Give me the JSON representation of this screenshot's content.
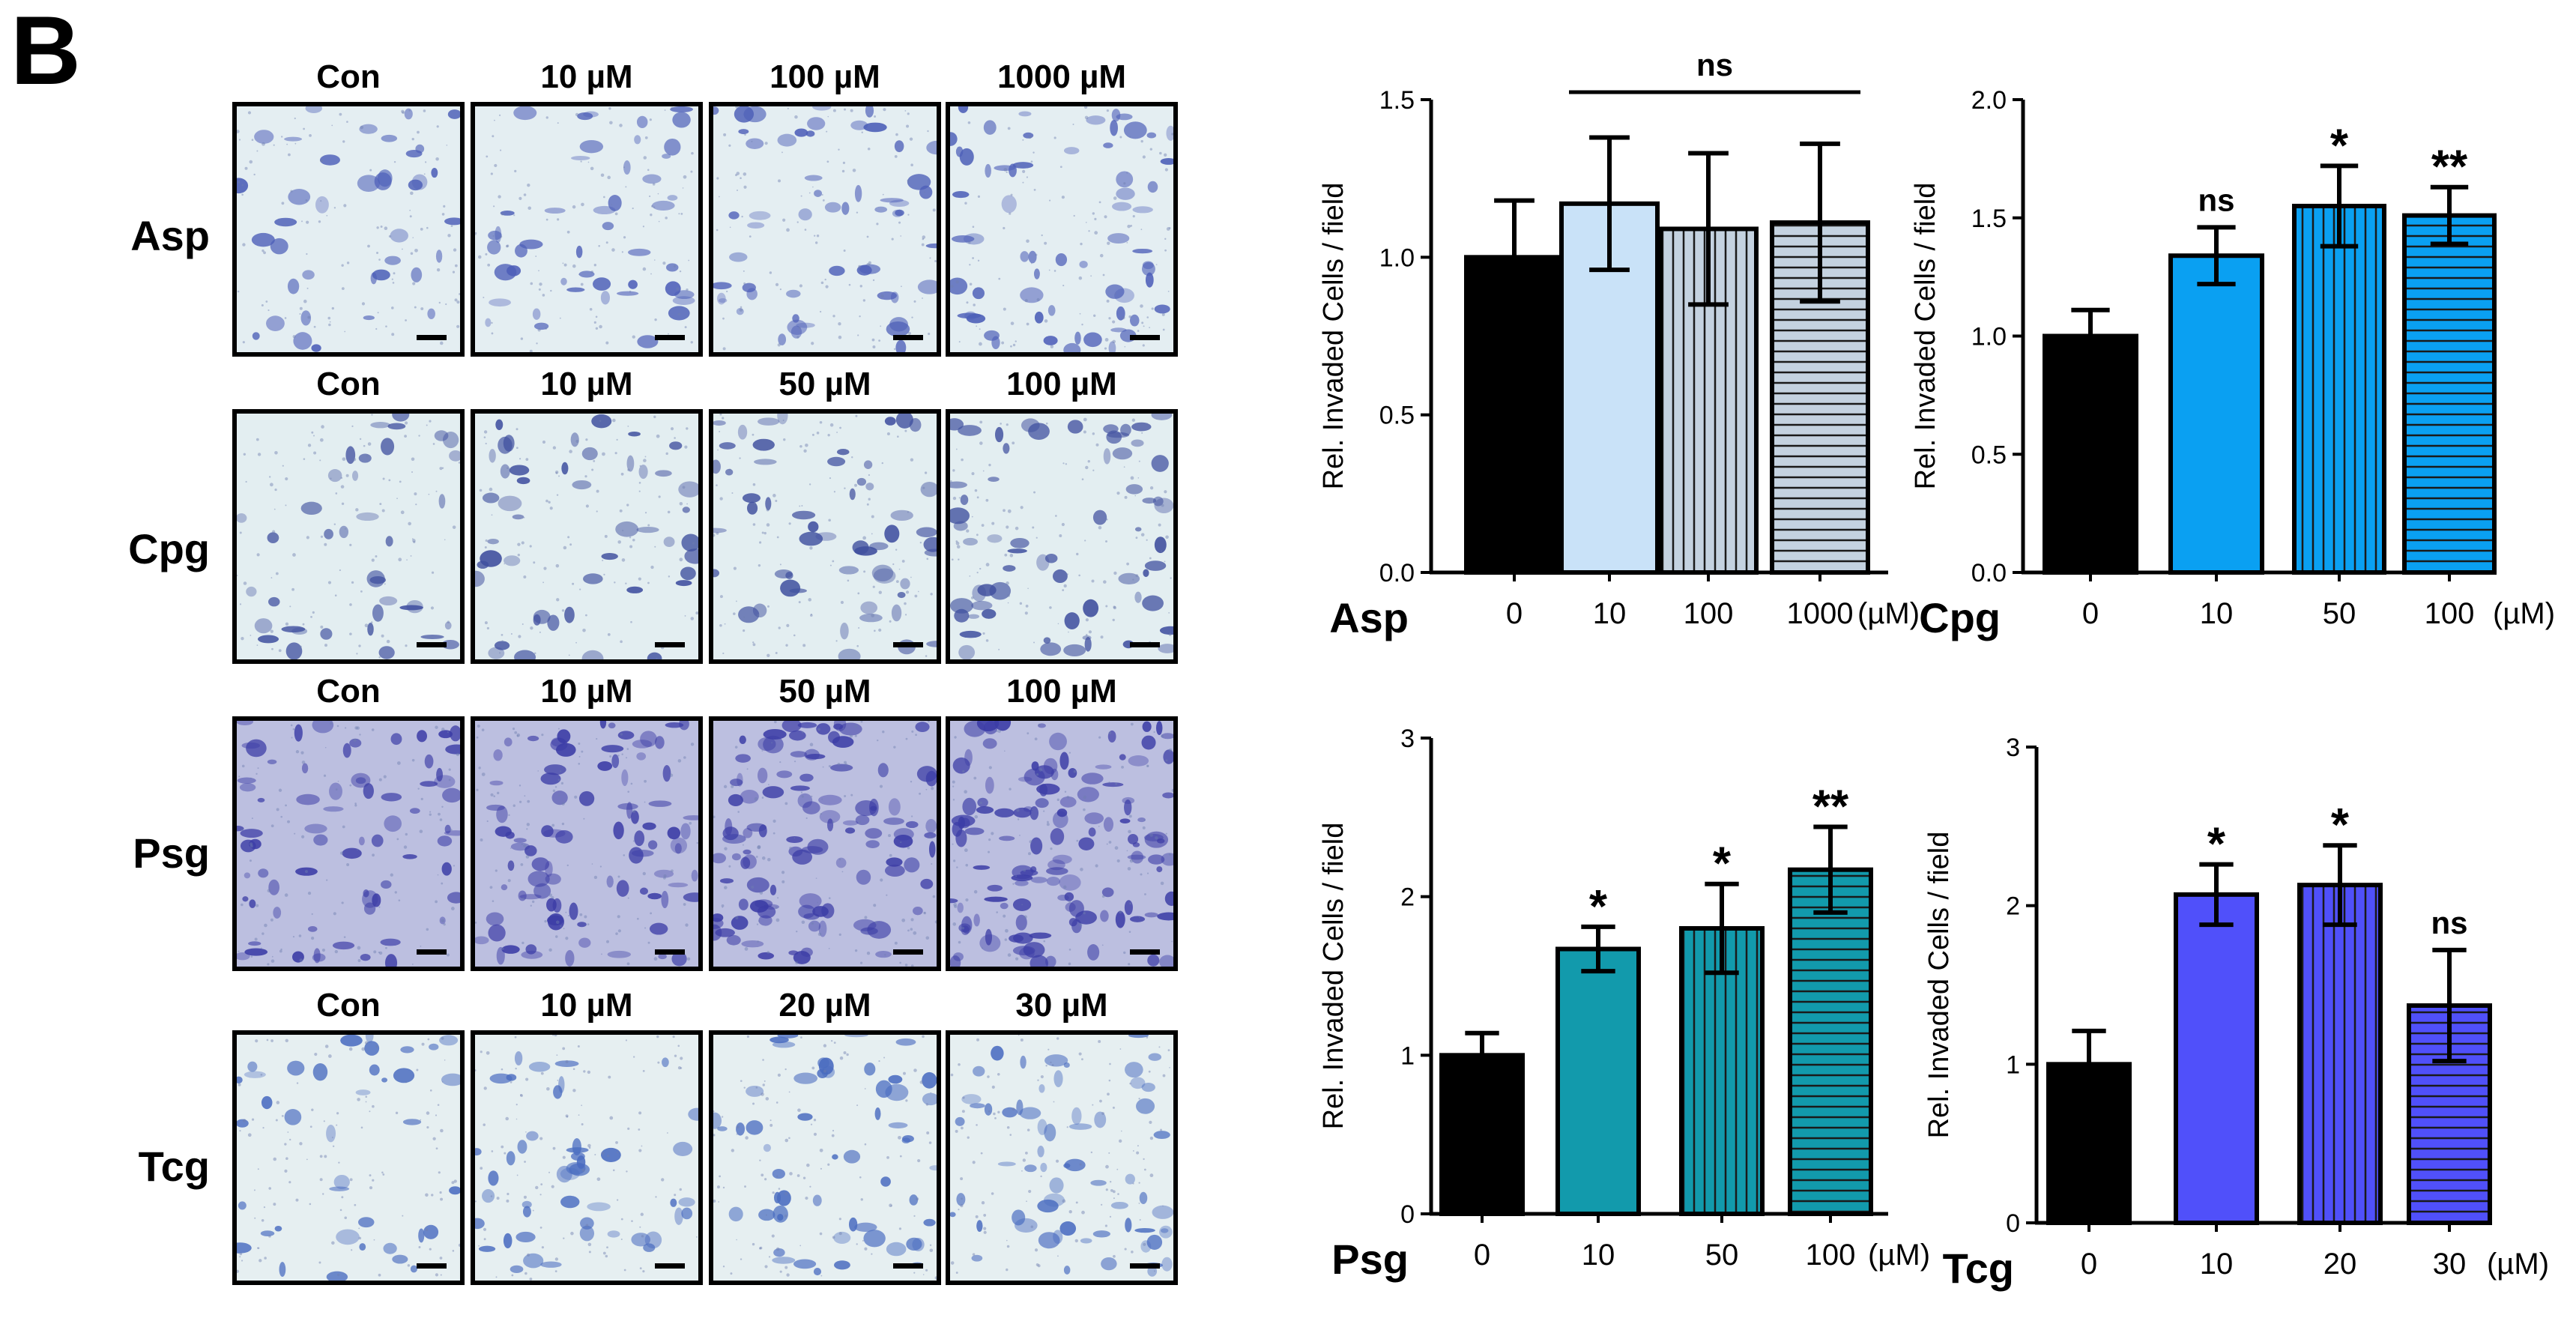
{
  "panel_label": "B",
  "micrograph_grid": {
    "rows": [
      {
        "label": "Asp",
        "conditions": [
          "Con",
          "10 µM",
          "100 µM",
          "1000 µM"
        ]
      },
      {
        "label": "Cpg",
        "conditions": [
          "Con",
          "10 µM",
          "50 µM",
          "100 µM"
        ]
      },
      {
        "label": "Psg",
        "conditions": [
          "Con",
          "10 µM",
          "50 µM",
          "100 µM"
        ]
      },
      {
        "label": "Tcg",
        "conditions": [
          "Con",
          "10 µM",
          "20 µM",
          "30 µM"
        ]
      }
    ],
    "stain_colors": {
      "Asp": "#4d5fb8",
      "Cpg": "#40509f",
      "Psg": "#3c3da6",
      "Tcg": "#4a6cc0"
    },
    "background_colors": {
      "Asp": "#e4eef2",
      "Cpg": "#e3eef1",
      "Psg": "#bcbfe0",
      "Tcg": "#e6eff1"
    }
  },
  "chart_data": [
    {
      "type": "bar",
      "group_label": "Asp",
      "unit_label": "(µM)",
      "categories": [
        "0",
        "10",
        "100",
        "1000"
      ],
      "values": [
        1.0,
        1.17,
        1.09,
        1.11
      ],
      "errors": [
        0.18,
        0.21,
        0.24,
        0.25
      ],
      "significance": [
        "",
        "",
        "",
        ""
      ],
      "bracket": {
        "from": "10",
        "to": "1000",
        "label": "ns"
      },
      "ylabel": "Rel. Invaded Cells / field",
      "ylim": [
        0,
        1.5
      ],
      "yticks": [
        "0.0",
        "0.5",
        "1.0",
        "1.5"
      ],
      "fills": [
        "#000000",
        "#c9e2f8",
        "#c4d2e0",
        "#c4d2e0"
      ],
      "patterns": [
        "solid",
        "solid",
        "vertical",
        "horizontal"
      ]
    },
    {
      "type": "bar",
      "group_label": "Cpg",
      "unit_label": "(µM)",
      "categories": [
        "0",
        "10",
        "50",
        "100"
      ],
      "values": [
        1.0,
        1.34,
        1.55,
        1.51
      ],
      "errors": [
        0.11,
        0.12,
        0.17,
        0.12
      ],
      "significance": [
        "",
        "ns",
        "*",
        "**"
      ],
      "ylabel": "Rel. Invaded Cells / field",
      "ylim": [
        0,
        2.0
      ],
      "yticks": [
        "0.0",
        "0.5",
        "1.0",
        "1.5",
        "2.0"
      ],
      "fills": [
        "#000000",
        "#0aa0f2",
        "#0aa0f2",
        "#0aa0f2"
      ],
      "patterns": [
        "solid",
        "solid",
        "vertical",
        "horizontal"
      ]
    },
    {
      "type": "bar",
      "group_label": "Psg",
      "unit_label": "(µM)",
      "categories": [
        "0",
        "10",
        "50",
        "100"
      ],
      "values": [
        1.0,
        1.67,
        1.8,
        2.17
      ],
      "errors": [
        0.14,
        0.14,
        0.28,
        0.27
      ],
      "significance": [
        "",
        "*",
        "*",
        "**"
      ],
      "ylabel": "Rel. Invaded Cells / field",
      "ylim": [
        0,
        3
      ],
      "yticks": [
        "0",
        "1",
        "2",
        "3"
      ],
      "fills": [
        "#000000",
        "#129aac",
        "#129aac",
        "#129aac"
      ],
      "patterns": [
        "solid",
        "solid",
        "vertical",
        "horizontal"
      ]
    },
    {
      "type": "bar",
      "group_label": "Tcg",
      "unit_label": "(µM)",
      "categories": [
        "0",
        "10",
        "20",
        "30"
      ],
      "values": [
        1.0,
        2.07,
        2.13,
        1.37
      ],
      "errors": [
        0.21,
        0.19,
        0.25,
        0.35
      ],
      "significance": [
        "",
        "*",
        "*",
        "ns"
      ],
      "ylabel": "Rel. Invaded Cells / field",
      "ylim": [
        0,
        3
      ],
      "yticks": [
        "0",
        "1",
        "2",
        "3"
      ],
      "fills": [
        "#000000",
        "#5050fa",
        "#5050fa",
        "#5050fa"
      ],
      "patterns": [
        "solid",
        "solid",
        "vertical",
        "horizontal"
      ]
    }
  ]
}
